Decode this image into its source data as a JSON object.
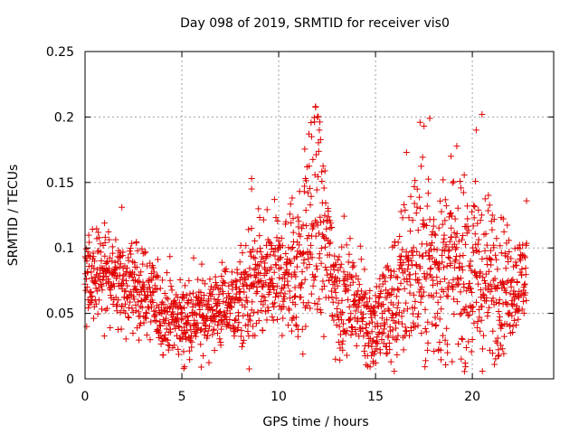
{
  "chart_data": {
    "type": "scatter",
    "title": "Day 098 of 2019, SRMTID for receiver vis0",
    "xlabel": "GPS time / hours",
    "ylabel": "SRMTID / TECUs",
    "xlim": [
      0,
      24.2
    ],
    "ylim": [
      0,
      0.25
    ],
    "x_ticks": [
      0,
      5,
      10,
      15,
      20
    ],
    "x_tick_labels": [
      "0",
      "5",
      "10",
      "15",
      "20"
    ],
    "y_ticks": [
      0,
      0.05,
      0.1,
      0.15,
      0.2,
      0.25
    ],
    "y_tick_labels": [
      "0",
      "0.05",
      "0.1",
      "0.15",
      "0.2",
      "0.25"
    ],
    "grid": true,
    "marker": "+",
    "colors": {
      "series": "#e00000",
      "grid": "#a0a0a0",
      "axis": "#000000"
    },
    "series": [
      {
        "name": "SRMTID",
        "trend_x": [
          0,
          1,
          2,
          3,
          4,
          5,
          6,
          7,
          8,
          9,
          10,
          11,
          11.5,
          12,
          12.5,
          13,
          14,
          14.8,
          15.5,
          16,
          17,
          18,
          19,
          20,
          21,
          22,
          22.8
        ],
        "trend_y": [
          0.075,
          0.08,
          0.072,
          0.068,
          0.05,
          0.045,
          0.05,
          0.055,
          0.06,
          0.07,
          0.078,
          0.085,
          0.11,
          0.12,
          0.1,
          0.065,
          0.06,
          0.04,
          0.05,
          0.06,
          0.09,
          0.085,
          0.085,
          0.08,
          0.075,
          0.07,
          0.08
        ],
        "spread_x": [
          0,
          2,
          4,
          6,
          8,
          8.5,
          10,
          11,
          12,
          12.5,
          14,
          15,
          16.5,
          17.5,
          19,
          20.5,
          22,
          22.8
        ],
        "spread_y": [
          0.018,
          0.02,
          0.017,
          0.017,
          0.018,
          0.03,
          0.022,
          0.035,
          0.05,
          0.03,
          0.018,
          0.02,
          0.035,
          0.045,
          0.035,
          0.04,
          0.022,
          0.018
        ],
        "peaks": [
          {
            "x": 11.9,
            "y": 0.208
          },
          {
            "x": 12.0,
            "y": 0.2
          },
          {
            "x": 11.7,
            "y": 0.185
          },
          {
            "x": 12.1,
            "y": 0.19
          },
          {
            "x": 17.3,
            "y": 0.196
          },
          {
            "x": 17.8,
            "y": 0.199
          },
          {
            "x": 20.2,
            "y": 0.19
          },
          {
            "x": 20.5,
            "y": 0.202
          },
          {
            "x": 18.9,
            "y": 0.17
          },
          {
            "x": 16.6,
            "y": 0.173
          },
          {
            "x": 8.6,
            "y": 0.153
          },
          {
            "x": 8.6,
            "y": 0.145
          },
          {
            "x": 1.9,
            "y": 0.131
          },
          {
            "x": 22.8,
            "y": 0.136
          },
          {
            "x": 5.1,
            "y": 0.008
          },
          {
            "x": 6.0,
            "y": 0.009
          },
          {
            "x": 14.9,
            "y": 0.012
          },
          {
            "x": 15.8,
            "y": 0.013
          }
        ],
        "count": 1900
      }
    ]
  }
}
